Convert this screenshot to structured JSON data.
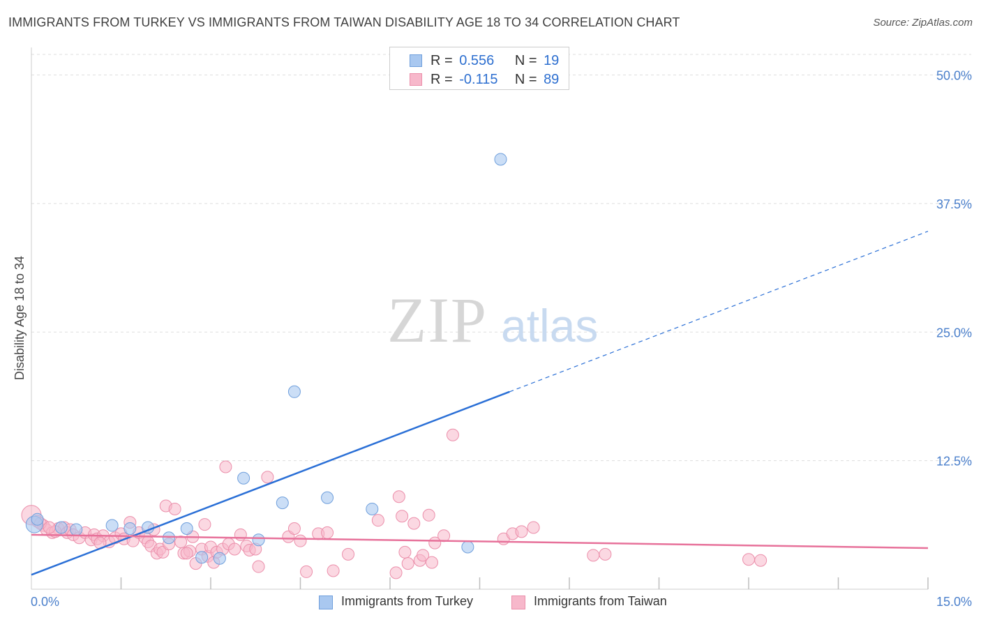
{
  "header": {
    "title": "IMMIGRANTS FROM TURKEY VS IMMIGRANTS FROM TAIWAN DISABILITY AGE 18 TO 34 CORRELATION CHART",
    "source": "Source: ZipAtlas.com"
  },
  "watermark": {
    "zip": "ZIP",
    "atlas": "atlas"
  },
  "legend": {
    "r_label": "R =",
    "n_label": "N =",
    "turkey": {
      "r": "0.556",
      "n": "19"
    },
    "taiwan": {
      "r": "-0.115",
      "n": "89"
    }
  },
  "bottom_legend": {
    "turkey": "Immigrants from Turkey",
    "taiwan": "Immigrants from Taiwan"
  },
  "colors": {
    "turkey_fill": "#a9c8f0",
    "turkey_stroke": "#6f9fdc",
    "turkey_line": "#2a6fd6",
    "taiwan_fill": "#f7b8cb",
    "taiwan_stroke": "#eb8eaa",
    "taiwan_line": "#e7719a",
    "tick_text": "#4a7fcb",
    "grid": "#dddddd"
  },
  "chart_data": {
    "type": "scatter",
    "title": "IMMIGRANTS FROM TURKEY VS IMMIGRANTS FROM TAIWAN DISABILITY AGE 18 TO 34 CORRELATION CHART",
    "xlabel": "",
    "ylabel": "Disability Age 18 to 34",
    "xlim": [
      0,
      15
    ],
    "ylim": [
      0,
      52
    ],
    "x_tick_labels": [
      "0.0%",
      "15.0%"
    ],
    "y_ticks": [
      12.5,
      25.0,
      37.5,
      50.0
    ],
    "y_tick_labels": [
      "12.5%",
      "25.0%",
      "37.5%",
      "50.0%"
    ],
    "grid": true,
    "legend_position": "top-center",
    "series": [
      {
        "name": "Immigrants from Turkey",
        "R": 0.556,
        "N": 19,
        "points": [
          [
            0.05,
            6.3
          ],
          [
            0.1,
            6.8
          ],
          [
            0.75,
            5.8
          ],
          [
            1.35,
            6.2
          ],
          [
            1.65,
            5.9
          ],
          [
            1.95,
            6.0
          ],
          [
            2.3,
            5.0
          ],
          [
            2.6,
            5.9
          ],
          [
            2.85,
            3.1
          ],
          [
            3.15,
            3.0
          ],
          [
            3.55,
            10.8
          ],
          [
            3.8,
            4.8
          ],
          [
            4.2,
            8.4
          ],
          [
            4.4,
            19.2
          ],
          [
            4.95,
            8.9
          ],
          [
            5.7,
            7.8
          ],
          [
            7.3,
            4.1
          ],
          [
            7.85,
            41.8
          ],
          [
            0.5,
            6.0
          ]
        ],
        "trend": {
          "x0": 0,
          "y0": 1.4,
          "x1": 8.0,
          "y1": 19.2,
          "dash_to_x": 15,
          "dash_to_y": 34.8
        }
      },
      {
        "name": "Immigrants from Taiwan",
        "R": -0.115,
        "N": 89,
        "points": [
          [
            0.0,
            7.2
          ],
          [
            0.1,
            6.6
          ],
          [
            0.2,
            6.2
          ],
          [
            0.25,
            5.8
          ],
          [
            0.35,
            5.5
          ],
          [
            0.45,
            5.9
          ],
          [
            0.55,
            6.0
          ],
          [
            0.6,
            5.5
          ],
          [
            0.65,
            5.8
          ],
          [
            0.7,
            5.3
          ],
          [
            0.8,
            5.0
          ],
          [
            0.9,
            5.5
          ],
          [
            1.0,
            4.8
          ],
          [
            1.05,
            5.3
          ],
          [
            1.1,
            4.9
          ],
          [
            1.2,
            5.2
          ],
          [
            1.3,
            4.6
          ],
          [
            1.4,
            5.0
          ],
          [
            1.5,
            5.4
          ],
          [
            1.55,
            4.9
          ],
          [
            1.65,
            6.5
          ],
          [
            1.7,
            4.7
          ],
          [
            1.8,
            5.5
          ],
          [
            1.9,
            5.0
          ],
          [
            1.95,
            4.6
          ],
          [
            2.0,
            4.2
          ],
          [
            2.05,
            5.8
          ],
          [
            2.1,
            3.5
          ],
          [
            2.15,
            3.9
          ],
          [
            2.2,
            3.6
          ],
          [
            2.25,
            8.1
          ],
          [
            2.3,
            4.4
          ],
          [
            2.4,
            7.8
          ],
          [
            2.5,
            4.6
          ],
          [
            2.55,
            3.5
          ],
          [
            2.65,
            3.7
          ],
          [
            2.7,
            5.1
          ],
          [
            2.75,
            2.5
          ],
          [
            2.85,
            3.9
          ],
          [
            2.9,
            6.3
          ],
          [
            2.95,
            3.2
          ],
          [
            3.0,
            4.1
          ],
          [
            3.05,
            2.6
          ],
          [
            3.1,
            3.6
          ],
          [
            3.2,
            3.9
          ],
          [
            3.25,
            11.9
          ],
          [
            3.3,
            4.4
          ],
          [
            3.4,
            3.9
          ],
          [
            3.5,
            5.3
          ],
          [
            3.6,
            4.2
          ],
          [
            3.65,
            3.8
          ],
          [
            3.8,
            2.2
          ],
          [
            3.95,
            10.9
          ],
          [
            4.3,
            5.1
          ],
          [
            4.4,
            5.9
          ],
          [
            4.5,
            4.7
          ],
          [
            4.6,
            1.7
          ],
          [
            4.8,
            5.4
          ],
          [
            4.95,
            5.5
          ],
          [
            5.05,
            1.8
          ],
          [
            5.3,
            3.4
          ],
          [
            5.8,
            6.7
          ],
          [
            6.1,
            1.6
          ],
          [
            6.15,
            9.0
          ],
          [
            6.2,
            7.1
          ],
          [
            6.25,
            3.6
          ],
          [
            6.3,
            2.5
          ],
          [
            6.4,
            6.4
          ],
          [
            6.5,
            2.8
          ],
          [
            6.55,
            3.3
          ],
          [
            6.65,
            7.2
          ],
          [
            6.75,
            4.5
          ],
          [
            6.9,
            5.2
          ],
          [
            7.05,
            15.0
          ],
          [
            7.9,
            4.9
          ],
          [
            8.05,
            5.4
          ],
          [
            8.2,
            5.6
          ],
          [
            8.4,
            6.0
          ],
          [
            9.4,
            3.3
          ],
          [
            9.6,
            3.4
          ],
          [
            12.0,
            2.9
          ],
          [
            12.2,
            2.8
          ],
          [
            0.15,
            6.4
          ],
          [
            0.4,
            5.6
          ],
          [
            1.15,
            4.5
          ],
          [
            2.6,
            3.5
          ],
          [
            3.75,
            3.9
          ],
          [
            6.7,
            2.6
          ],
          [
            0.3,
            6.0
          ]
        ],
        "trend": {
          "x0": 0,
          "y0": 5.3,
          "x1": 15,
          "y1": 4.0
        }
      }
    ]
  }
}
